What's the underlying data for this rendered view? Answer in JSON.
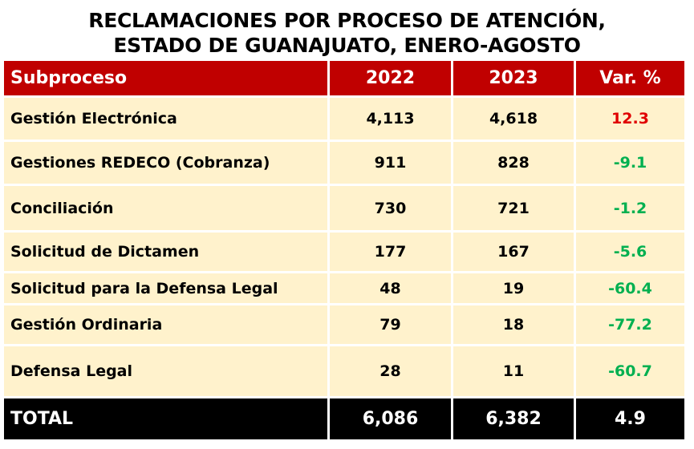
{
  "title": {
    "line1": "RECLAMACIONES POR PROCESO DE ATENCIÓN,",
    "line2": "ESTADO DE GUANAJUATO, ENERO-AGOSTO"
  },
  "colors": {
    "header_bg": "#C00000",
    "cell_bg": "#FFF2CC",
    "total_bg": "#000000",
    "positive_var": "#E00000",
    "negative_var": "#00B050"
  },
  "table": {
    "headers": [
      "Subproceso",
      "2022",
      "2023",
      "Var. %"
    ],
    "rows": [
      {
        "subproceso": "Gestión Electrónica",
        "y2022": "4,113",
        "y2023": "4,618",
        "var": "12.3"
      },
      {
        "subproceso": "Gestiones REDECO (Cobranza)",
        "y2022": "911",
        "y2023": "828",
        "var": "-9.1"
      },
      {
        "subproceso": "Conciliación",
        "y2022": "730",
        "y2023": "721",
        "var": "-1.2"
      },
      {
        "subproceso": "Solicitud de Dictamen",
        "y2022": "177",
        "y2023": "167",
        "var": "-5.6"
      },
      {
        "subproceso": "Solicitud para la Defensa Legal",
        "y2022": "48",
        "y2023": "19",
        "var": "-60.4"
      },
      {
        "subproceso": "Gestión Ordinaria",
        "y2022": "79",
        "y2023": "18",
        "var": "-77.2"
      },
      {
        "subproceso": "Defensa Legal",
        "y2022": "28",
        "y2023": "11",
        "var": "-60.7"
      }
    ],
    "total": {
      "label": "TOTAL",
      "y2022": "6,086",
      "y2023": "6,382",
      "var": "4.9"
    }
  }
}
